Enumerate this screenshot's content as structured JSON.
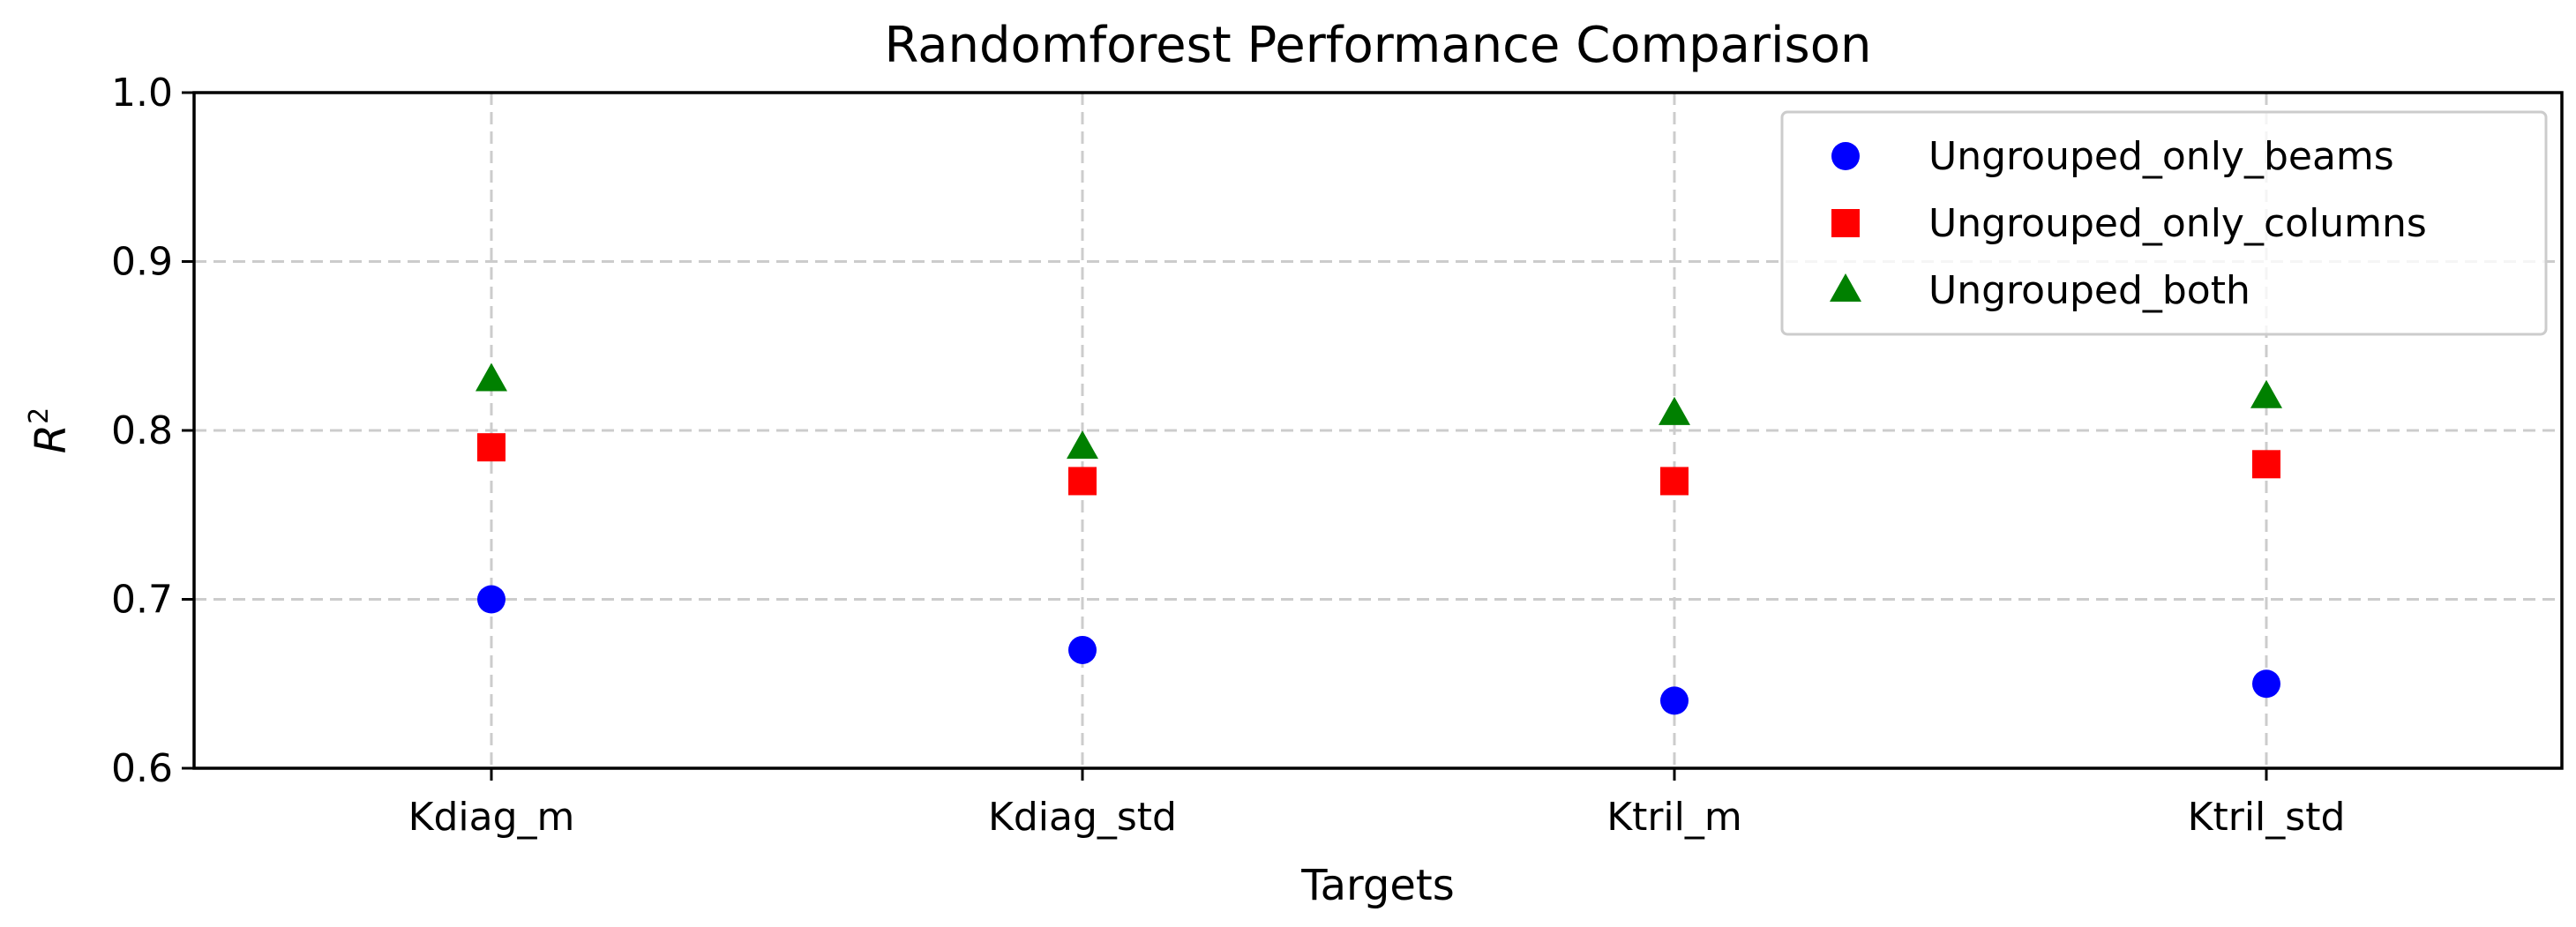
{
  "chart_data": {
    "type": "scatter",
    "title": "Randomforest Performance Comparison",
    "xlabel": "Targets",
    "ylabel_base": "R",
    "ylabel_sup": "2",
    "categories": [
      "Kdiag_m",
      "Kdiag_std",
      "Ktril_m",
      "Ktril_std"
    ],
    "ylim": [
      0.6,
      1.0
    ],
    "yticks": [
      0.6,
      0.7,
      0.8,
      0.9,
      1.0
    ],
    "ytick_labels": [
      "0.6",
      "0.7",
      "0.8",
      "0.9",
      "1.0"
    ],
    "grid": true,
    "legend_position": "top-right",
    "series": [
      {
        "name": "Ungrouped_only_beams",
        "marker": "circle",
        "color": "#0000ff",
        "values": [
          0.7,
          0.67,
          0.64,
          0.65
        ]
      },
      {
        "name": "Ungrouped_only_columns",
        "marker": "square",
        "color": "#ff0000",
        "values": [
          0.79,
          0.77,
          0.77,
          0.78
        ]
      },
      {
        "name": "Ungrouped_both",
        "marker": "triangle",
        "color": "#008000",
        "values": [
          0.83,
          0.79,
          0.81,
          0.82
        ]
      }
    ]
  }
}
